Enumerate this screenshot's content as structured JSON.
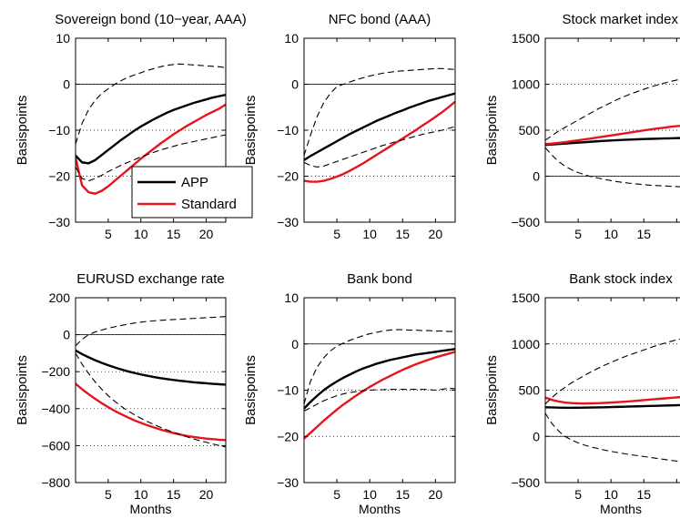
{
  "figure": {
    "ylabel": "Basispoints",
    "xlabel": "Months"
  },
  "legend": {
    "placement": "inside first panel, lower-right",
    "entries": [
      {
        "name": "APP",
        "color": "#000000"
      },
      {
        "name": "Standard",
        "color": "#e8141c"
      }
    ]
  },
  "chart_data": [
    {
      "type": "line",
      "title": "Sovereign bond (10−year, AAA)",
      "ylabel": "Basispoints",
      "xlabel": "",
      "xlim": [
        0,
        23
      ],
      "ylim": [
        -30,
        10
      ],
      "xticks": [
        5,
        10,
        15,
        20
      ],
      "yticks": [
        -30,
        -20,
        -10,
        0,
        10
      ],
      "ytick_labels": [
        "−30",
        "−20",
        "−10",
        "0",
        "10"
      ],
      "grid": "dotted horizontal",
      "x": [
        0,
        1,
        2,
        3,
        4,
        5,
        6,
        7,
        8,
        9,
        10,
        11,
        12,
        13,
        14,
        15,
        16,
        17,
        18,
        19,
        20,
        21,
        22,
        23
      ],
      "series": [
        {
          "name": "APP",
          "color": "#000000",
          "style": "solid",
          "values": [
            -15.5,
            -17,
            -17.2,
            -16.5,
            -15.4,
            -14.3,
            -13.2,
            -12.1,
            -11.1,
            -10.1,
            -9.2,
            -8.4,
            -7.6,
            -6.9,
            -6.2,
            -5.6,
            -5.1,
            -4.6,
            -4.1,
            -3.7,
            -3.3,
            -2.9,
            -2.6,
            -2.3
          ]
        },
        {
          "name": "Standard",
          "color": "#e8141c",
          "style": "solid",
          "values": [
            -16,
            -22,
            -23.5,
            -23.8,
            -23.2,
            -22.2,
            -21,
            -19.8,
            -18.6,
            -17.4,
            -16.2,
            -15.1,
            -14,
            -12.9,
            -11.9,
            -10.9,
            -10,
            -9.1,
            -8.3,
            -7.5,
            -6.7,
            -6,
            -5.3,
            -4.4
          ]
        },
        {
          "name": "",
          "color": "#000000",
          "style": "dashed",
          "values": [
            -13,
            -8.5,
            -5.5,
            -3.5,
            -2,
            -1,
            0,
            0.8,
            1.5,
            2,
            2.5,
            3,
            3.4,
            3.8,
            4.1,
            4.3,
            4.4,
            4.3,
            4.2,
            4.1,
            4,
            3.9,
            3.8,
            3.6
          ]
        },
        {
          "name": "",
          "color": "#000000",
          "style": "dashed",
          "values": [
            -18,
            -20.5,
            -21,
            -20.5,
            -19.8,
            -19,
            -18.3,
            -17.6,
            -17,
            -16.4,
            -15.8,
            -15.3,
            -14.8,
            -14.3,
            -13.9,
            -13.5,
            -13.1,
            -12.8,
            -12.5,
            -12.2,
            -11.9,
            -11.6,
            -11.3,
            -11
          ]
        }
      ]
    },
    {
      "type": "line",
      "title": "NFC bond (AAA)",
      "ylabel": "Basispoints",
      "xlabel": "",
      "xlim": [
        0,
        23
      ],
      "ylim": [
        -30,
        10
      ],
      "xticks": [
        5,
        10,
        15,
        20
      ],
      "yticks": [
        -30,
        -20,
        -10,
        0,
        10
      ],
      "ytick_labels": [
        "−30",
        "−20",
        "−10",
        "0",
        "10"
      ],
      "grid": "dotted horizontal",
      "x": [
        0,
        1,
        2,
        3,
        4,
        5,
        6,
        7,
        8,
        9,
        10,
        11,
        12,
        13,
        14,
        15,
        16,
        17,
        18,
        19,
        20,
        21,
        22,
        23
      ],
      "series": [
        {
          "name": "APP",
          "color": "#000000",
          "style": "solid",
          "values": [
            -16.5,
            -15.6,
            -14.8,
            -14,
            -13.2,
            -12.4,
            -11.6,
            -10.8,
            -10.1,
            -9.4,
            -8.7,
            -8,
            -7.4,
            -6.8,
            -6.2,
            -5.7,
            -5.1,
            -4.6,
            -4.1,
            -3.6,
            -3.2,
            -2.8,
            -2.4,
            -2
          ]
        },
        {
          "name": "Standard",
          "color": "#e8141c",
          "style": "solid",
          "values": [
            -21,
            -21.2,
            -21.2,
            -21,
            -20.6,
            -20.1,
            -19.5,
            -18.8,
            -18,
            -17.2,
            -16.3,
            -15.4,
            -14.5,
            -13.6,
            -12.7,
            -11.8,
            -10.9,
            -10,
            -9,
            -8.1,
            -7.1,
            -6.1,
            -5,
            -3.8
          ]
        },
        {
          "name": "",
          "color": "#000000",
          "style": "dashed",
          "values": [
            -15.5,
            -11,
            -7,
            -4,
            -2,
            -0.5,
            0,
            0.5,
            1,
            1.4,
            1.8,
            2.1,
            2.4,
            2.6,
            2.8,
            2.9,
            3,
            3.1,
            3.2,
            3.3,
            3.4,
            3.4,
            3.3,
            3.2
          ]
        },
        {
          "name": "",
          "color": "#000000",
          "style": "dashed",
          "values": [
            -17,
            -17.7,
            -18,
            -17.8,
            -17.3,
            -16.8,
            -16.3,
            -15.8,
            -15.3,
            -14.8,
            -14.3,
            -13.8,
            -13.3,
            -12.9,
            -12.5,
            -12.1,
            -11.7,
            -11.3,
            -10.9,
            -10.6,
            -10.3,
            -10,
            -9.6,
            -9.2
          ]
        }
      ]
    },
    {
      "type": "line",
      "title": "Stock market index",
      "ylabel": "Basispoints",
      "xlabel": "",
      "xlim": [
        0,
        23
      ],
      "ylim": [
        -500,
        1500
      ],
      "xticks": [
        5,
        10,
        15,
        20
      ],
      "yticks": [
        -500,
        0,
        500,
        1000,
        1500
      ],
      "ytick_labels": [
        "−500",
        "0",
        "500",
        "1000",
        "1500"
      ],
      "grid": "dotted horizontal",
      "x": [
        0,
        1,
        2,
        3,
        4,
        5,
        6,
        7,
        8,
        9,
        10,
        11,
        12,
        13,
        14,
        15,
        16,
        17,
        18,
        19,
        20,
        21,
        22,
        23
      ],
      "series": [
        {
          "name": "APP",
          "color": "#000000",
          "style": "solid",
          "values": [
            340,
            345,
            350,
            355,
            360,
            365,
            370,
            375,
            380,
            384,
            388,
            392,
            395,
            398,
            401,
            404,
            406,
            408,
            410,
            412,
            414,
            415,
            416,
            417
          ]
        },
        {
          "name": "Standard",
          "color": "#e8141c",
          "style": "solid",
          "values": [
            350,
            355,
            362,
            370,
            380,
            390,
            400,
            410,
            421,
            432,
            443,
            454,
            465,
            476,
            487,
            498,
            508,
            518,
            527,
            536,
            544,
            552,
            560,
            568
          ]
        },
        {
          "name": "",
          "color": "#000000",
          "style": "dashed",
          "values": [
            390,
            440,
            490,
            530,
            570,
            610,
            650,
            690,
            730,
            765,
            800,
            835,
            865,
            895,
            920,
            945,
            970,
            990,
            1010,
            1030,
            1045,
            1060,
            1075,
            1090
          ]
        },
        {
          "name": "",
          "color": "#000000",
          "style": "dashed",
          "values": [
            310,
            230,
            160,
            110,
            70,
            40,
            15,
            -5,
            -20,
            -35,
            -48,
            -60,
            -70,
            -78,
            -85,
            -92,
            -98,
            -102,
            -106,
            -110,
            -113,
            -116,
            -118,
            -120
          ]
        }
      ]
    },
    {
      "type": "line",
      "title": "EURUSD exchange rate",
      "ylabel": "Basispoints",
      "xlabel": "Months",
      "xlim": [
        0,
        23
      ],
      "ylim": [
        -800,
        200
      ],
      "xticks": [
        5,
        10,
        15,
        20
      ],
      "yticks": [
        -800,
        -600,
        -400,
        -200,
        0,
        200
      ],
      "ytick_labels": [
        "−800",
        "−600",
        "−400",
        "−200",
        "0",
        "200"
      ],
      "grid": "dotted horizontal",
      "x": [
        0,
        1,
        2,
        3,
        4,
        5,
        6,
        7,
        8,
        9,
        10,
        11,
        12,
        13,
        14,
        15,
        16,
        17,
        18,
        19,
        20,
        21,
        22,
        23
      ],
      "series": [
        {
          "name": "APP",
          "color": "#000000",
          "style": "solid",
          "values": [
            -85,
            -105,
            -122,
            -138,
            -152,
            -165,
            -177,
            -188,
            -198,
            -207,
            -215,
            -222,
            -229,
            -235,
            -240,
            -245,
            -249,
            -253,
            -257,
            -260,
            -263,
            -266,
            -268,
            -270
          ]
        },
        {
          "name": "Standard",
          "color": "#e8141c",
          "style": "solid",
          "values": [
            -265,
            -295,
            -322,
            -347,
            -370,
            -392,
            -412,
            -430,
            -447,
            -463,
            -477,
            -490,
            -502,
            -513,
            -523,
            -532,
            -540,
            -547,
            -553,
            -558,
            -562,
            -565,
            -568,
            -570
          ]
        },
        {
          "name": "",
          "color": "#000000",
          "style": "dashed",
          "values": [
            -60,
            -25,
            0,
            15,
            25,
            35,
            43,
            50,
            57,
            63,
            68,
            72,
            75,
            78,
            80,
            82,
            84,
            86,
            88,
            90,
            92,
            94,
            96,
            98
          ]
        },
        {
          "name": "",
          "color": "#000000",
          "style": "dashed",
          "values": [
            -100,
            -160,
            -210,
            -255,
            -295,
            -330,
            -360,
            -388,
            -412,
            -433,
            -452,
            -470,
            -486,
            -501,
            -515,
            -528,
            -540,
            -552,
            -563,
            -573,
            -582,
            -591,
            -600,
            -608
          ]
        }
      ]
    },
    {
      "type": "line",
      "title": "Bank bond",
      "ylabel": "Basispoints",
      "xlabel": "Months",
      "xlim": [
        0,
        23
      ],
      "ylim": [
        -30,
        10
      ],
      "xticks": [
        5,
        10,
        15,
        20
      ],
      "yticks": [
        -30,
        -20,
        -10,
        0,
        10
      ],
      "ytick_labels": [
        "−30",
        "−20",
        "−10",
        "0",
        "10"
      ],
      "grid": "dotted horizontal",
      "x": [
        0,
        1,
        2,
        3,
        4,
        5,
        6,
        7,
        8,
        9,
        10,
        11,
        12,
        13,
        14,
        15,
        16,
        17,
        18,
        19,
        20,
        21,
        22,
        23
      ],
      "series": [
        {
          "name": "APP",
          "color": "#000000",
          "style": "solid",
          "values": [
            -14,
            -12.5,
            -11.2,
            -10,
            -9,
            -8.1,
            -7.3,
            -6.6,
            -5.9,
            -5.3,
            -4.8,
            -4.3,
            -3.9,
            -3.5,
            -3.2,
            -2.9,
            -2.6,
            -2.3,
            -2.1,
            -1.9,
            -1.7,
            -1.5,
            -1.3,
            -1.1
          ]
        },
        {
          "name": "Standard",
          "color": "#e8141c",
          "style": "solid",
          "values": [
            -20.5,
            -19.2,
            -17.9,
            -16.6,
            -15.4,
            -14.2,
            -13.1,
            -12.1,
            -11.1,
            -10.2,
            -9.3,
            -8.5,
            -7.7,
            -7,
            -6.3,
            -5.6,
            -5,
            -4.4,
            -3.9,
            -3.4,
            -2.9,
            -2.5,
            -2.1,
            -1.7
          ]
        },
        {
          "name": "",
          "color": "#000000",
          "style": "dashed",
          "values": [
            -13,
            -8,
            -5,
            -3,
            -1.5,
            -0.5,
            0.2,
            0.8,
            1.3,
            1.8,
            2.2,
            2.5,
            2.8,
            3,
            3.1,
            3.1,
            3,
            3,
            2.9,
            2.9,
            2.8,
            2.8,
            2.7,
            2.7
          ]
        },
        {
          "name": "",
          "color": "#000000",
          "style": "dashed",
          "values": [
            -14.5,
            -13.8,
            -13,
            -12.3,
            -11.7,
            -11.2,
            -10.8,
            -10.5,
            -10.3,
            -10.1,
            -10,
            -9.9,
            -9.9,
            -9.8,
            -9.8,
            -9.8,
            -9.8,
            -9.8,
            -9.8,
            -9.9,
            -10,
            -9.8,
            -9.6,
            -9.7
          ]
        }
      ]
    },
    {
      "type": "line",
      "title": "Bank stock index",
      "ylabel": "Basispoints",
      "xlabel": "Months",
      "xlim": [
        0,
        23
      ],
      "ylim": [
        -500,
        1500
      ],
      "xticks": [
        5,
        10,
        15,
        20
      ],
      "yticks": [
        -500,
        0,
        500,
        1000,
        1500
      ],
      "ytick_labels": [
        "−500",
        "0",
        "500",
        "1000",
        "1500"
      ],
      "grid": "dotted horizontal",
      "x": [
        0,
        1,
        2,
        3,
        4,
        5,
        6,
        7,
        8,
        9,
        10,
        11,
        12,
        13,
        14,
        15,
        16,
        17,
        18,
        19,
        20,
        21,
        22,
        23
      ],
      "series": [
        {
          "name": "APP",
          "color": "#000000",
          "style": "solid",
          "values": [
            315,
            313,
            311,
            310,
            310,
            310,
            311,
            312,
            313,
            315,
            317,
            319,
            321,
            323,
            325,
            327,
            329,
            331,
            333,
            335,
            337,
            339,
            341,
            343
          ]
        },
        {
          "name": "Standard",
          "color": "#e8141c",
          "style": "solid",
          "values": [
            420,
            395,
            378,
            366,
            360,
            357,
            356,
            357,
            359,
            362,
            366,
            370,
            375,
            380,
            386,
            392,
            398,
            404,
            410,
            416,
            422,
            428,
            434,
            440
          ]
        },
        {
          "name": "",
          "color": "#000000",
          "style": "dashed",
          "values": [
            350,
            420,
            480,
            530,
            580,
            620,
            660,
            700,
            735,
            770,
            800,
            830,
            860,
            885,
            910,
            935,
            960,
            985,
            1005,
            1025,
            1045,
            1060,
            1075,
            1085
          ]
        },
        {
          "name": "",
          "color": "#000000",
          "style": "dashed",
          "values": [
            250,
            140,
            60,
            0,
            -40,
            -70,
            -95,
            -115,
            -132,
            -148,
            -162,
            -175,
            -187,
            -198,
            -208,
            -218,
            -228,
            -238,
            -248,
            -258,
            -268,
            -278,
            -288,
            -296
          ]
        }
      ]
    }
  ]
}
